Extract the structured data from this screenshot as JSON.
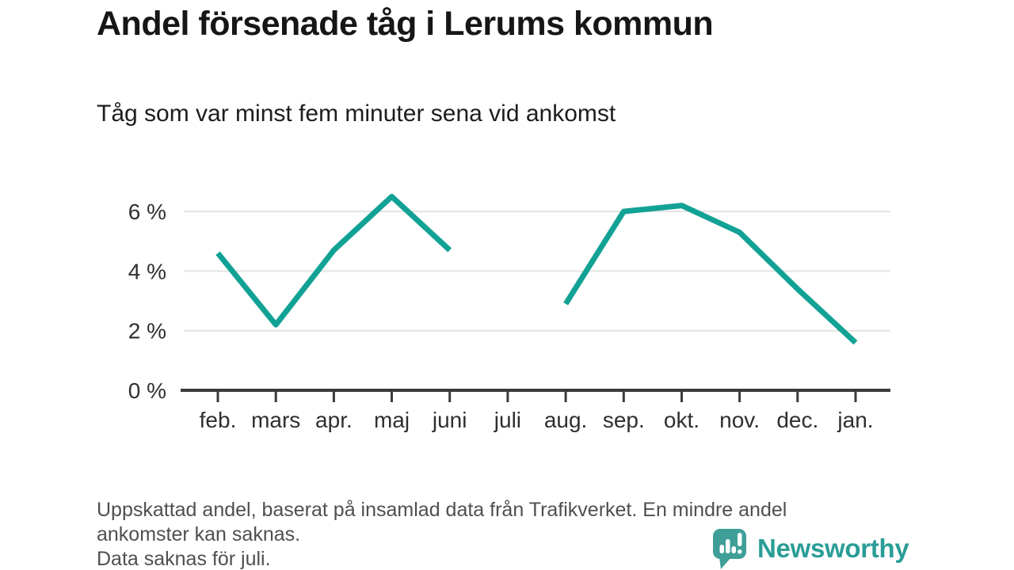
{
  "header": {
    "title": "Andel försenade tåg i Lerums kommun",
    "subtitle": "Tåg som var minst fem minuter sena vid ankomst"
  },
  "chart_data": {
    "type": "line",
    "title": "Andel försenade tåg i Lerums kommun",
    "subtitle": "Tåg som var minst fem minuter sena vid ankomst",
    "categories": [
      "feb.",
      "mars",
      "apr.",
      "maj",
      "juni",
      "juli",
      "aug.",
      "sep.",
      "okt.",
      "nov.",
      "dec.",
      "jan."
    ],
    "values": [
      4.6,
      2.2,
      4.7,
      6.5,
      4.7,
      null,
      2.9,
      6.0,
      6.2,
      5.3,
      3.4,
      1.6
    ],
    "unit": "%",
    "ylim": [
      0,
      7
    ],
    "yticks": [
      0,
      2,
      4,
      6
    ],
    "ytick_labels": [
      "0 %",
      "2 %",
      "4 %",
      "6 %"
    ],
    "grid": "horizontal",
    "legend": "none",
    "line_color": "#12a295",
    "missing_data_note": "Data saknas för juli."
  },
  "footnote": {
    "line1": "Uppskattad andel, baserat på insamlad data från Trafikverket. En mindre andel",
    "line2": "ankomster kan saknas.",
    "line3": "Data saknas för juli."
  },
  "logo": {
    "wordmark": "Newsworthy",
    "icon": "bar-chart-speech-bubble-icon",
    "wordmark_color": "#2a9d96",
    "icon_color": "#3f9f98"
  }
}
